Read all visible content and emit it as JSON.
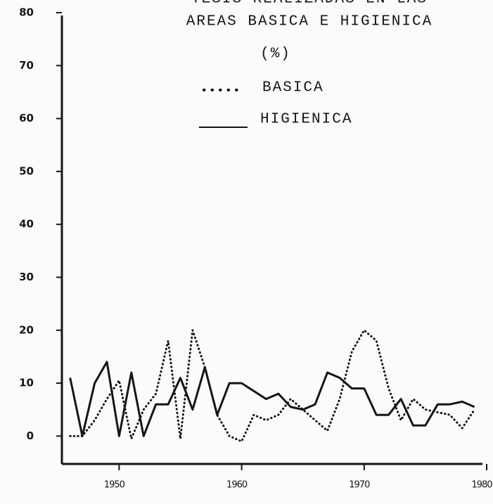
{
  "chart_data": {
    "type": "line",
    "title": "TESIS REALIZADAS EN LAS",
    "subtitle": "AREAS BASICA E HIGIENICA",
    "unit": "(%)",
    "x": [
      1946,
      1947,
      1948,
      1949,
      1950,
      1951,
      1952,
      1953,
      1954,
      1955,
      1956,
      1957,
      1958,
      1959,
      1960,
      1961,
      1962,
      1963,
      1964,
      1965,
      1966,
      1967,
      1968,
      1969,
      1970,
      1971,
      1972,
      1973,
      1974,
      1975,
      1976,
      1977,
      1978,
      1979
    ],
    "series": [
      {
        "name": "BASICA",
        "color": "#151515",
        "style": "dotted",
        "values": [
          0,
          0,
          3,
          7,
          10.5,
          -0.5,
          5,
          8,
          18,
          -0.5,
          20,
          13,
          4,
          0,
          -1,
          4,
          3,
          4,
          7,
          5,
          3,
          1,
          7,
          16,
          20,
          18,
          9,
          3,
          7,
          5,
          4.5,
          4,
          1.5,
          5
        ]
      },
      {
        "name": "HIGIENICA",
        "color": "#151515",
        "style": "solid",
        "values": [
          11,
          0,
          10,
          14,
          0,
          12,
          0,
          6,
          6,
          11,
          5,
          13,
          4,
          10,
          10,
          8.5,
          7,
          8,
          5.5,
          5,
          6,
          12,
          11,
          9,
          9,
          4,
          4,
          7,
          2,
          2,
          6,
          6,
          6.5,
          5.5
        ]
      }
    ],
    "xlim": [
      1945.5,
      1980
    ],
    "xticks": [
      1950,
      1960,
      1970,
      1980
    ],
    "ylim": [
      -5,
      80
    ],
    "yticks": [
      0,
      10,
      20,
      30,
      40,
      50,
      60,
      70,
      80
    ],
    "grid": false
  }
}
